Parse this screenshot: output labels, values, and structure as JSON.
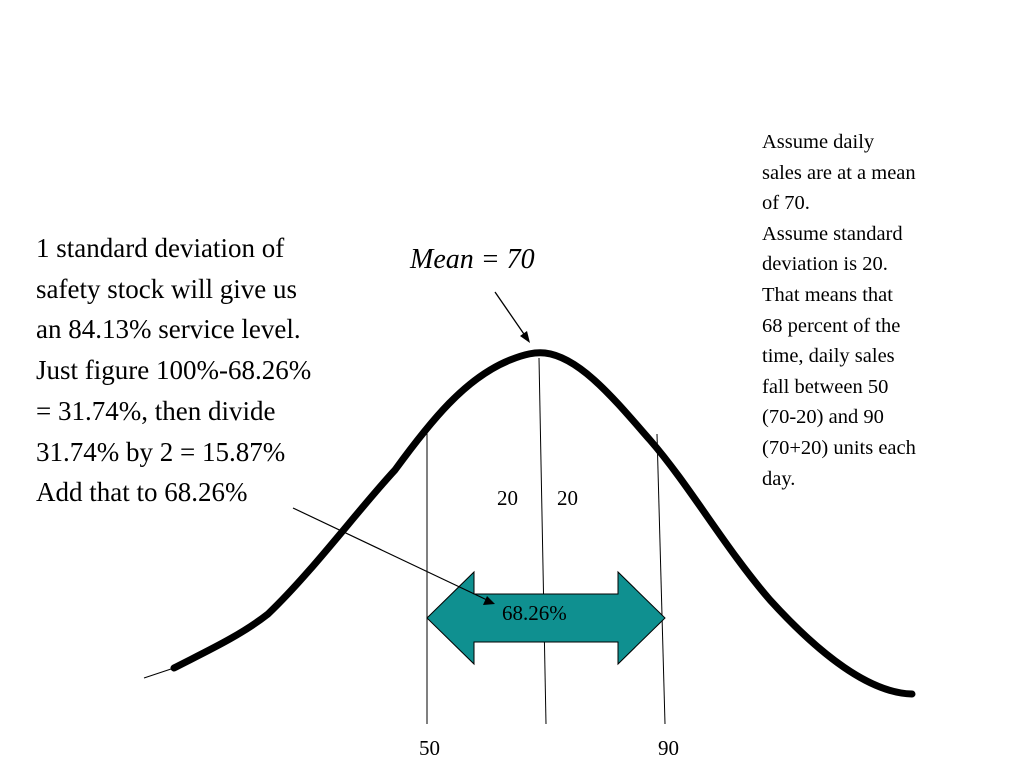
{
  "explanation": {
    "lines": [
      "1 standard deviation of",
      "safety stock will give us",
      "an 84.13% service level.",
      "Just figure 100%-68.26%",
      "= 31.74%, then divide",
      "31.74% by 2 = 15.87%",
      "Add that to 68.26%"
    ]
  },
  "assumptions": {
    "lines": [
      "Assume daily",
      "sales are at a mean",
      "of 70.",
      "Assume standard",
      "deviation is 20.",
      "That means that",
      "68 percent of the",
      "time, daily sales",
      "fall between 50",
      "(70-20) and 90",
      "(70+20) units each",
      "day."
    ]
  },
  "curve": {
    "mean_label": "Mean = 70",
    "sd_left_label": "20",
    "sd_right_label": "20",
    "range_label": "68.26%",
    "lower_bound_label": "50",
    "upper_bound_label": "90",
    "arrow_fill_color": "#0f9090"
  }
}
